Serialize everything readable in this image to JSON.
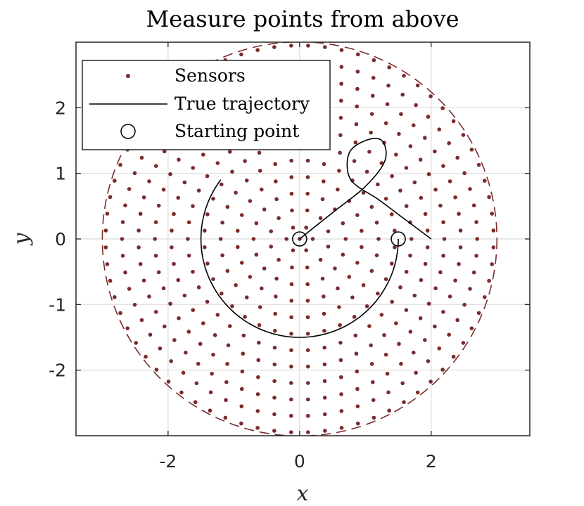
{
  "chart_data": {
    "type": "scatter",
    "title": "Measure points from above",
    "xlabel": "x",
    "ylabel": "y",
    "xlim": [
      -3.4,
      3.5
    ],
    "ylim": [
      -3.0,
      3.0
    ],
    "xticks": [
      -2,
      0,
      2
    ],
    "yticks": [
      -2,
      -1,
      0,
      1,
      2
    ],
    "xtick_labels": [
      "-2",
      "0",
      "2"
    ],
    "ytick_labels": [
      "-2",
      "-1",
      "0",
      "1",
      "2"
    ],
    "grid": true,
    "legend_position": "top-left",
    "colors": {
      "sensors": "#7b2b2b",
      "trajectory": "#000000",
      "boundary": "#7b2b2b"
    },
    "boundary_circle": {
      "center": [
        0,
        0
      ],
      "radius": 3.0,
      "style": "dashed"
    },
    "series": [
      {
        "name": "Sensors",
        "marker": "dot",
        "description": "sensors arranged in 12 concentric rings, radii 0.2 to 2.95",
        "rings": [
          {
            "radius": 0.2,
            "count": 6
          },
          {
            "radius": 0.45,
            "count": 12
          },
          {
            "radius": 0.7,
            "count": 18
          },
          {
            "radius": 0.95,
            "count": 24
          },
          {
            "radius": 1.2,
            "count": 30
          },
          {
            "radius": 1.45,
            "count": 36
          },
          {
            "radius": 1.7,
            "count": 42
          },
          {
            "radius": 1.95,
            "count": 48
          },
          {
            "radius": 2.2,
            "count": 54
          },
          {
            "radius": 2.45,
            "count": 60
          },
          {
            "radius": 2.7,
            "count": 66
          },
          {
            "radius": 2.95,
            "count": 72
          }
        ]
      },
      {
        "name": "True trajectory",
        "description": "arc of radius 1.5 from (-1.2, 0.9) around through (0, -1.5) to (1.5, 0); separate loop curve from (0, 0) through (0.9, 1.5) to (2.0, 0)",
        "arc": {
          "center": [
            0,
            0
          ],
          "radius": 1.5,
          "start_deg": 143,
          "end_deg": 360,
          "direction": "counterclockwise"
        },
        "loop_curve": [
          [
            0,
            0
          ],
          [
            0.5,
            0.4
          ],
          [
            1.0,
            0.8
          ],
          [
            1.3,
            1.2
          ],
          [
            1.25,
            1.5
          ],
          [
            1.0,
            1.5
          ],
          [
            0.75,
            1.3
          ],
          [
            0.78,
            0.9
          ],
          [
            1.2,
            0.6
          ],
          [
            1.6,
            0.3
          ],
          [
            2.0,
            0
          ]
        ]
      },
      {
        "name": "Starting point",
        "marker": "open-circle",
        "points": [
          [
            0,
            0
          ],
          [
            1.5,
            0
          ]
        ]
      }
    ]
  }
}
